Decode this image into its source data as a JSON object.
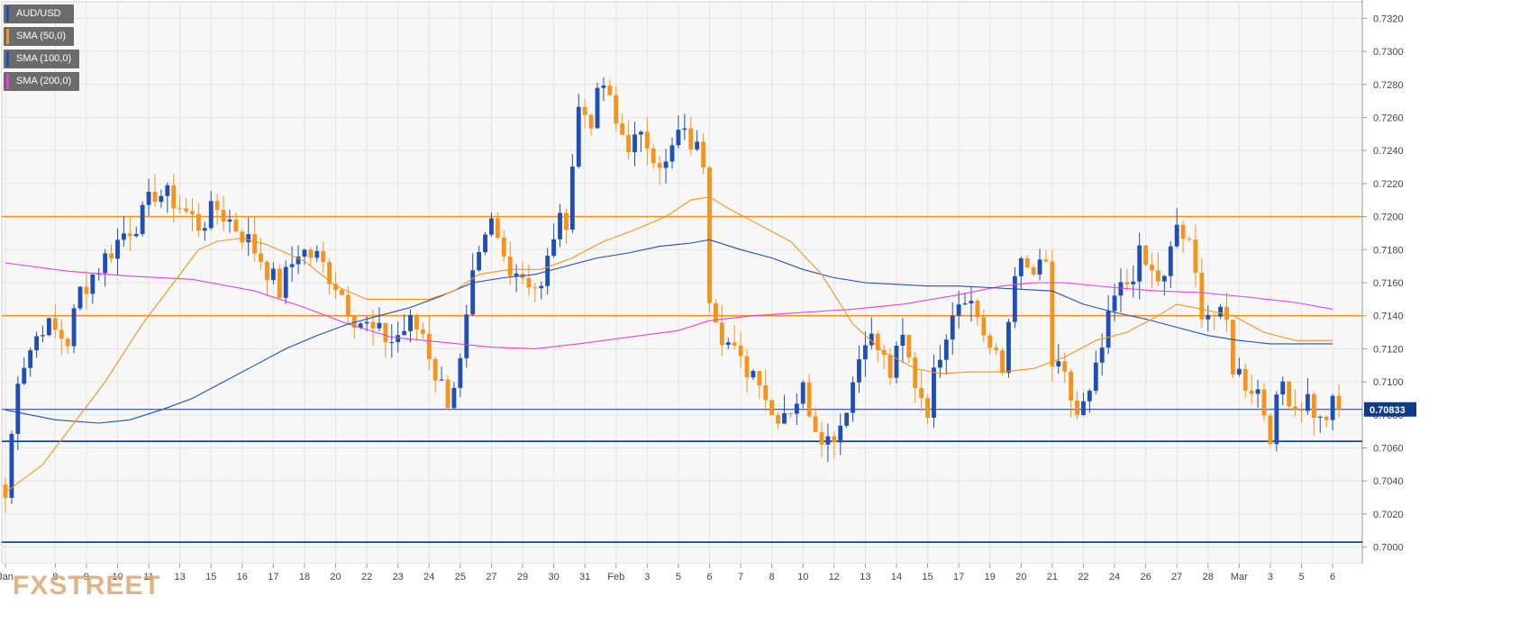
{
  "chart_data": {
    "type": "candlestick",
    "symbol": "AUD/USD",
    "legend": [
      {
        "label": "AUD/USD",
        "color": "#1f4fb4"
      },
      {
        "label": "SMA (50,0)",
        "color": "#f7931a"
      },
      {
        "label": "SMA (100,0)",
        "color": "#1f4fb4"
      },
      {
        "label": "SMA (200,0)",
        "color": "#e040e0"
      }
    ],
    "y_ticks": [
      "0.7320",
      "0.7300",
      "0.7280",
      "0.7260",
      "0.7240",
      "0.7220",
      "0.7200",
      "0.7180",
      "0.7160",
      "0.7140",
      "0.7120",
      "0.7100",
      "0.7080",
      "0.7060",
      "0.7040",
      "0.7020",
      "0.7000"
    ],
    "ylim": [
      0.699,
      0.733
    ],
    "current_price": "0.70833",
    "x_ticks": [
      {
        "label": "Jan",
        "i": 0
      },
      {
        "label": "8",
        "i": 8
      },
      {
        "label": "9",
        "i": 13
      },
      {
        "label": "10",
        "i": 18
      },
      {
        "label": "11",
        "i": 23
      },
      {
        "label": "13",
        "i": 28
      },
      {
        "label": "15",
        "i": 33
      },
      {
        "label": "16",
        "i": 38
      },
      {
        "label": "17",
        "i": 43
      },
      {
        "label": "18",
        "i": 48
      },
      {
        "label": "20",
        "i": 53
      },
      {
        "label": "22",
        "i": 58
      },
      {
        "label": "23",
        "i": 63
      },
      {
        "label": "24",
        "i": 68
      },
      {
        "label": "25",
        "i": 73
      },
      {
        "label": "27",
        "i": 78
      },
      {
        "label": "29",
        "i": 83
      },
      {
        "label": "30",
        "i": 88
      },
      {
        "label": "31",
        "i": 93
      },
      {
        "label": "Feb",
        "i": 98
      },
      {
        "label": "3",
        "i": 103
      },
      {
        "label": "5",
        "i": 108
      },
      {
        "label": "6",
        "i": 113
      },
      {
        "label": "7",
        "i": 118
      },
      {
        "label": "8",
        "i": 123
      },
      {
        "label": "10",
        "i": 128
      },
      {
        "label": "12",
        "i": 133
      },
      {
        "label": "13",
        "i": 138
      },
      {
        "label": "14",
        "i": 143
      },
      {
        "label": "15",
        "i": 148
      },
      {
        "label": "17",
        "i": 153
      },
      {
        "label": "19",
        "i": 158
      },
      {
        "label": "20",
        "i": 163
      },
      {
        "label": "21",
        "i": 168
      },
      {
        "label": "22",
        "i": 173
      },
      {
        "label": "24",
        "i": 178
      },
      {
        "label": "26",
        "i": 183
      },
      {
        "label": "27",
        "i": 188
      },
      {
        "label": "28",
        "i": 193
      },
      {
        "label": "Mar",
        "i": 198
      },
      {
        "label": "3",
        "i": 203
      },
      {
        "label": "5",
        "i": 208
      },
      {
        "label": "6",
        "i": 213
      }
    ],
    "horizontal_levels": [
      {
        "value": 0.72,
        "color": "#f7931a"
      },
      {
        "value": 0.714,
        "color": "#f7931a"
      },
      {
        "value": 0.70833,
        "color": "#0e3a8c"
      },
      {
        "value": 0.7064,
        "color": "#0e3a8c"
      },
      {
        "value": 0.7003,
        "color": "#0e3a8c"
      }
    ],
    "close_path": [
      [
        0,
        0.703
      ],
      [
        2,
        0.7105
      ],
      [
        6,
        0.7135
      ],
      [
        10,
        0.7125
      ],
      [
        12,
        0.7155
      ],
      [
        15,
        0.717
      ],
      [
        19,
        0.719
      ],
      [
        22,
        0.72
      ],
      [
        24,
        0.7215
      ],
      [
        27,
        0.721
      ],
      [
        31,
        0.7195
      ],
      [
        34,
        0.7205
      ],
      [
        38,
        0.719
      ],
      [
        41,
        0.7175
      ],
      [
        44,
        0.7155
      ],
      [
        47,
        0.718
      ],
      [
        50,
        0.7175
      ],
      [
        53,
        0.716
      ],
      [
        56,
        0.714
      ],
      [
        59,
        0.713
      ],
      [
        62,
        0.7125
      ],
      [
        65,
        0.7135
      ],
      [
        67,
        0.713
      ],
      [
        69,
        0.7105
      ],
      [
        71,
        0.709
      ],
      [
        73,
        0.711
      ],
      [
        75,
        0.716
      ],
      [
        78,
        0.7195
      ],
      [
        80,
        0.7175
      ],
      [
        83,
        0.7165
      ],
      [
        86,
        0.7155
      ],
      [
        88,
        0.719
      ],
      [
        90,
        0.72
      ],
      [
        92,
        0.7265
      ],
      [
        94,
        0.726
      ],
      [
        96,
        0.728
      ],
      [
        98,
        0.7255
      ],
      [
        100,
        0.7245
      ],
      [
        103,
        0.7245
      ],
      [
        106,
        0.723
      ],
      [
        108,
        0.725
      ],
      [
        110,
        0.7245
      ],
      [
        112,
        0.7235
      ],
      [
        113,
        0.7155
      ],
      [
        115,
        0.713
      ],
      [
        118,
        0.711
      ],
      [
        121,
        0.7105
      ],
      [
        123,
        0.708
      ],
      [
        126,
        0.7085
      ],
      [
        128,
        0.7095
      ],
      [
        130,
        0.7075
      ],
      [
        132,
        0.7065
      ],
      [
        134,
        0.7075
      ],
      [
        136,
        0.71
      ],
      [
        138,
        0.713
      ],
      [
        140,
        0.712
      ],
      [
        142,
        0.7105
      ],
      [
        144,
        0.7125
      ],
      [
        146,
        0.71
      ],
      [
        148,
        0.7085
      ],
      [
        150,
        0.712
      ],
      [
        152,
        0.7145
      ],
      [
        154,
        0.7155
      ],
      [
        156,
        0.714
      ],
      [
        158,
        0.712
      ],
      [
        160,
        0.7105
      ],
      [
        162,
        0.717
      ],
      [
        165,
        0.7165
      ],
      [
        167,
        0.717
      ],
      [
        168,
        0.711
      ],
      [
        170,
        0.71
      ],
      [
        172,
        0.708
      ],
      [
        174,
        0.709
      ],
      [
        176,
        0.712
      ],
      [
        178,
        0.715
      ],
      [
        180,
        0.716
      ],
      [
        182,
        0.7175
      ],
      [
        184,
        0.7165
      ],
      [
        186,
        0.716
      ],
      [
        188,
        0.7195
      ],
      [
        190,
        0.718
      ],
      [
        192,
        0.7145
      ],
      [
        194,
        0.714
      ],
      [
        196,
        0.7135
      ],
      [
        197,
        0.711
      ],
      [
        199,
        0.71
      ],
      [
        201,
        0.7095
      ],
      [
        203,
        0.707
      ],
      [
        205,
        0.71
      ],
      [
        207,
        0.7085
      ],
      [
        209,
        0.709
      ],
      [
        211,
        0.7075
      ],
      [
        213,
        0.7085
      ],
      [
        214,
        0.70833
      ]
    ],
    "sma50": [
      [
        0,
        0.7033
      ],
      [
        6,
        0.705
      ],
      [
        11,
        0.7075
      ],
      [
        16,
        0.71
      ],
      [
        22,
        0.7135
      ],
      [
        27,
        0.716
      ],
      [
        31,
        0.718
      ],
      [
        34,
        0.7185
      ],
      [
        38,
        0.7187
      ],
      [
        42,
        0.7183
      ],
      [
        48,
        0.7173
      ],
      [
        53,
        0.7158
      ],
      [
        58,
        0.715
      ],
      [
        63,
        0.715
      ],
      [
        68,
        0.715
      ],
      [
        72,
        0.7155
      ],
      [
        76,
        0.7165
      ],
      [
        81,
        0.7168
      ],
      [
        86,
        0.7168
      ],
      [
        91,
        0.7175
      ],
      [
        96,
        0.7185
      ],
      [
        101,
        0.7192
      ],
      [
        106,
        0.72
      ],
      [
        110,
        0.721
      ],
      [
        113,
        0.7212
      ],
      [
        116,
        0.7205
      ],
      [
        121,
        0.7195
      ],
      [
        126,
        0.7185
      ],
      [
        131,
        0.7165
      ],
      [
        136,
        0.7135
      ],
      [
        141,
        0.7118
      ],
      [
        146,
        0.7108
      ],
      [
        150,
        0.7105
      ],
      [
        155,
        0.7106
      ],
      [
        160,
        0.7106
      ],
      [
        165,
        0.7108
      ],
      [
        170,
        0.7115
      ],
      [
        175,
        0.7125
      ],
      [
        180,
        0.713
      ],
      [
        185,
        0.714
      ],
      [
        188,
        0.7147
      ],
      [
        192,
        0.7144
      ],
      [
        197,
        0.714
      ],
      [
        202,
        0.713
      ],
      [
        207,
        0.7125
      ],
      [
        213,
        0.7125
      ]
    ],
    "sma100": [
      [
        0,
        0.7083
      ],
      [
        8,
        0.7077
      ],
      [
        15,
        0.7075
      ],
      [
        20,
        0.7077
      ],
      [
        25,
        0.7083
      ],
      [
        30,
        0.709
      ],
      [
        35,
        0.71
      ],
      [
        40,
        0.711
      ],
      [
        45,
        0.712
      ],
      [
        50,
        0.7128
      ],
      [
        55,
        0.7135
      ],
      [
        60,
        0.714
      ],
      [
        65,
        0.7145
      ],
      [
        70,
        0.7152
      ],
      [
        75,
        0.716
      ],
      [
        80,
        0.7163
      ],
      [
        85,
        0.7165
      ],
      [
        90,
        0.717
      ],
      [
        95,
        0.7175
      ],
      [
        100,
        0.7178
      ],
      [
        105,
        0.7182
      ],
      [
        110,
        0.7184
      ],
      [
        113,
        0.7186
      ],
      [
        118,
        0.718
      ],
      [
        123,
        0.7175
      ],
      [
        128,
        0.7168
      ],
      [
        133,
        0.7163
      ],
      [
        138,
        0.716
      ],
      [
        143,
        0.7159
      ],
      [
        148,
        0.7158
      ],
      [
        153,
        0.7158
      ],
      [
        158,
        0.7157
      ],
      [
        163,
        0.7156
      ],
      [
        168,
        0.7155
      ],
      [
        173,
        0.7147
      ],
      [
        178,
        0.7142
      ],
      [
        183,
        0.7138
      ],
      [
        188,
        0.7133
      ],
      [
        193,
        0.7128
      ],
      [
        198,
        0.7125
      ],
      [
        203,
        0.7123
      ],
      [
        213,
        0.7123
      ]
    ],
    "sma200": [
      [
        0,
        0.7172
      ],
      [
        10,
        0.7167
      ],
      [
        20,
        0.7164
      ],
      [
        30,
        0.7162
      ],
      [
        40,
        0.7155
      ],
      [
        48,
        0.7145
      ],
      [
        55,
        0.7135
      ],
      [
        62,
        0.7127
      ],
      [
        70,
        0.7124
      ],
      [
        78,
        0.7121
      ],
      [
        85,
        0.712
      ],
      [
        92,
        0.7123
      ],
      [
        100,
        0.7127
      ],
      [
        108,
        0.7131
      ],
      [
        113,
        0.7137
      ],
      [
        120,
        0.714
      ],
      [
        128,
        0.7142
      ],
      [
        136,
        0.7144
      ],
      [
        144,
        0.7147
      ],
      [
        152,
        0.7152
      ],
      [
        160,
        0.7158
      ],
      [
        165,
        0.716
      ],
      [
        170,
        0.716
      ],
      [
        178,
        0.7157
      ],
      [
        185,
        0.7155
      ],
      [
        192,
        0.7154
      ],
      [
        200,
        0.7151
      ],
      [
        207,
        0.7148
      ],
      [
        213,
        0.7144
      ]
    ],
    "bar_count": 215,
    "colors": {
      "bull": "#1f4fb4",
      "bear": "#f7931a",
      "background": "#f7f7f7",
      "grid": "#e4e4e4"
    }
  },
  "branding": {
    "watermark_left": "FX",
    "watermark_right": "STREET"
  }
}
